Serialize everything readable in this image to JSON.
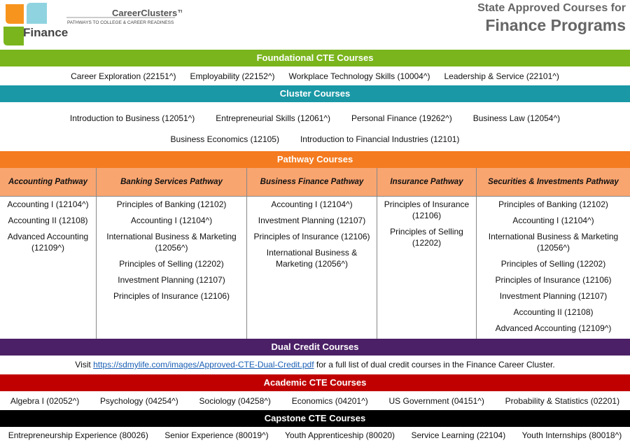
{
  "header": {
    "brand": "CareerClusters™",
    "tagline": "PATHWAYS TO COLLEGE & CAREER READINESS",
    "cluster": "Finance",
    "title_line1": "State Approved Courses for",
    "title_line2": "Finance Programs"
  },
  "foundational": {
    "title": "Foundational CTE Courses",
    "courses": [
      "Career Exploration (22151^)",
      "Employability (22152^)",
      "Workplace Technology Skills  (10004^)",
      "Leadership & Service (22101^)"
    ]
  },
  "cluster": {
    "title": "Cluster Courses",
    "rows": [
      [
        "Introduction to Business (12051^)",
        "Entrepreneurial Skills (12061^)",
        "Personal Finance (19262^)",
        "Business Law (12054^)"
      ],
      [
        "Business Economics (12105)",
        "Introduction to Financial Industries (12101)"
      ]
    ]
  },
  "pathways": {
    "title": "Pathway Courses",
    "columns": [
      {
        "name": "Accounting Pathway",
        "courses": [
          "Accounting I (12104^)",
          "Accounting II (12108)",
          "Advanced Accounting (12109^)"
        ]
      },
      {
        "name": "Banking Services Pathway",
        "courses": [
          "Principles of Banking (12102)",
          "Accounting I (12104^)",
          "International Business & Marketing (12056^)",
          "Principles of Selling (12202)",
          "Investment Planning (12107)",
          "Principles of Insurance (12106)"
        ]
      },
      {
        "name": "Business Finance Pathway",
        "courses": [
          "Accounting I (12104^)",
          "Investment Planning (12107)",
          "Principles of Insurance (12106)",
          "International Business & Marketing (12056^)"
        ]
      },
      {
        "name": "Insurance Pathway",
        "courses": [
          "Principles of Insurance (12106)",
          "Principles of Selling (12202)"
        ]
      },
      {
        "name": "Securities & Investments Pathway",
        "courses": [
          "Principles of Banking (12102)",
          "Accounting I (12104^)",
          "International Business & Marketing (12056^)",
          "Principles of Selling (12202)",
          "Principles of Insurance (12106)",
          "Investment Planning (12107)",
          "Accounting II (12108)",
          "Advanced Accounting  (12109^)"
        ]
      }
    ]
  },
  "dual_credit": {
    "title": "Dual Credit Courses",
    "text_before": "Visit",
    "link": "https://sdmylife.com/images/Approved-CTE-Dual-Credit.pdf",
    "text_after": "for a full list of dual credit courses in the Finance Career Cluster."
  },
  "academic": {
    "title": "Academic CTE Courses",
    "courses": [
      "Algebra I (02052^)",
      "Psychology (04254^)",
      "Sociology (04258^)",
      "Economics (04201^)",
      "US Government (04151^)",
      "Probability & Statistics (02201)"
    ]
  },
  "capstone": {
    "title": "Capstone CTE Courses",
    "courses": [
      "Entrepreneurship Experience (80026)",
      "Senior Experience (80019^)",
      "Youth Apprenticeship (80020)",
      "Service Learning (22104)",
      "Youth Internships (80018^)"
    ]
  }
}
